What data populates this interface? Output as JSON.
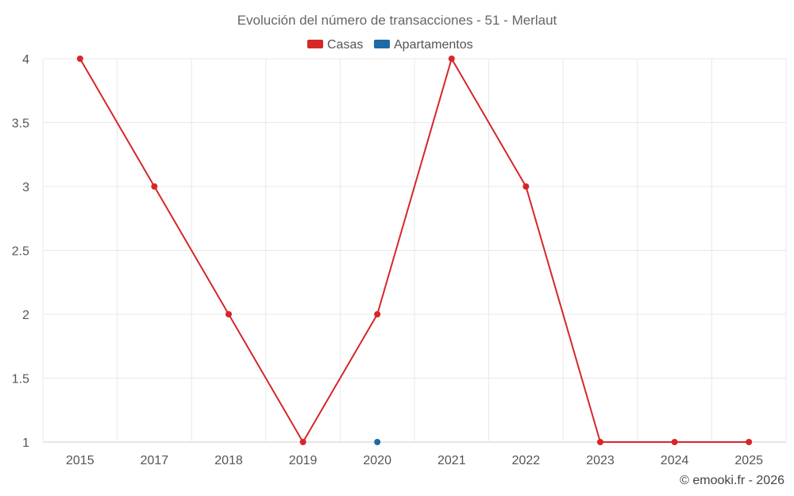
{
  "chart_data": {
    "type": "line",
    "title": "Evolución del número de transacciones - 51 - Merlaut",
    "categories": [
      "2015",
      "2017",
      "2018",
      "2019",
      "2020",
      "2021",
      "2022",
      "2023",
      "2024",
      "2025"
    ],
    "series": [
      {
        "name": "Casas",
        "color": "#d62728",
        "values": [
          4,
          3,
          2,
          1,
          2,
          4,
          3,
          1,
          1,
          1
        ]
      },
      {
        "name": "Apartamentos",
        "color": "#1f6aa5",
        "values": [
          null,
          null,
          null,
          null,
          1,
          null,
          null,
          null,
          null,
          null
        ]
      }
    ],
    "yticks": [
      "1",
      "1.5",
      "2",
      "2.5",
      "3",
      "3.5",
      "4"
    ],
    "ylim": [
      1,
      4
    ],
    "grid": true,
    "legend_position": "top-center"
  },
  "credits": "© emooki.fr - 2026"
}
